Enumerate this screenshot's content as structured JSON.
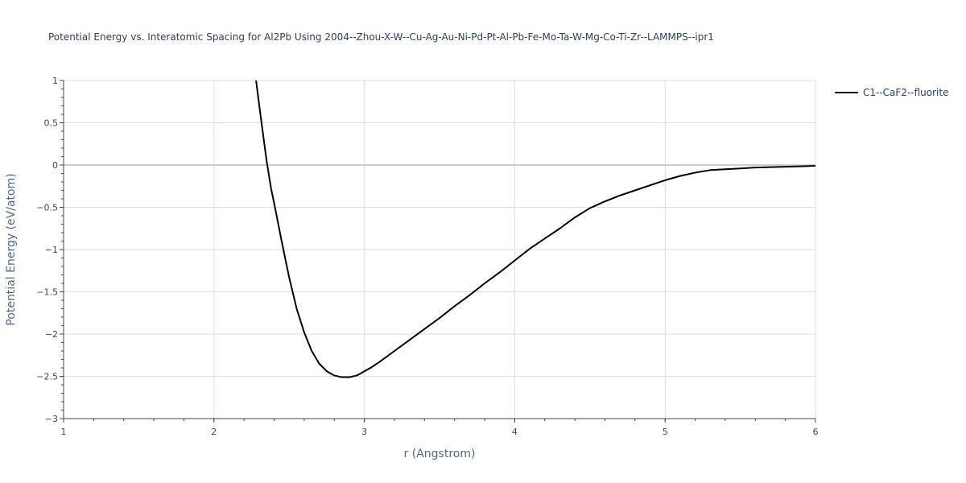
{
  "chart_data": {
    "type": "line",
    "title": "Potential Energy vs. Interatomic Spacing for Al2Pb Using 2004--Zhou-X-W--Cu-Ag-Au-Ni-Pd-Pt-Al-Pb-Fe-Mo-Ta-W-Mg-Co-Ti-Zr--LAMMPS--ipr1",
    "xlabel": "r (Angstrom)",
    "ylabel": "Potential Energy (eV/atom)",
    "xlim": [
      1,
      6
    ],
    "ylim": [
      -3,
      1
    ],
    "x_ticks": [
      1,
      2,
      3,
      4,
      5,
      6
    ],
    "x_tick_labels": [
      "1",
      "2",
      "3",
      "4",
      "5",
      "6"
    ],
    "y_ticks": [
      1,
      0.5,
      0,
      -0.5,
      -1,
      -1.5,
      -2,
      -2.5,
      -3
    ],
    "y_tick_labels": [
      "1",
      "0.5",
      "0",
      "−0.5",
      "−1",
      "−1.5",
      "−2",
      "−2.5",
      "−3"
    ],
    "grid": true,
    "legend_position": "top-right",
    "series": [
      {
        "name": "C1--CaF2--fluorite",
        "color": "#000000",
        "x": [
          2.28,
          2.3,
          2.32,
          2.35,
          2.38,
          2.4,
          2.45,
          2.5,
          2.55,
          2.6,
          2.65,
          2.7,
          2.75,
          2.8,
          2.85,
          2.9,
          2.95,
          3.0,
          3.05,
          3.1,
          3.2,
          3.3,
          3.4,
          3.5,
          3.6,
          3.7,
          3.8,
          3.9,
          4.0,
          4.1,
          4.2,
          4.3,
          4.4,
          4.5,
          4.6,
          4.7,
          4.8,
          4.9,
          5.0,
          5.1,
          5.2,
          5.3,
          5.4,
          5.5,
          5.6,
          5.7,
          5.8,
          5.9,
          6.0
        ],
        "y": [
          1.0,
          0.72,
          0.45,
          0.05,
          -0.28,
          -0.45,
          -0.9,
          -1.33,
          -1.7,
          -1.98,
          -2.2,
          -2.35,
          -2.44,
          -2.49,
          -2.51,
          -2.51,
          -2.49,
          -2.44,
          -2.39,
          -2.33,
          -2.2,
          -2.07,
          -1.94,
          -1.81,
          -1.67,
          -1.54,
          -1.4,
          -1.27,
          -1.13,
          -0.99,
          -0.87,
          -0.75,
          -0.62,
          -0.51,
          -0.43,
          -0.36,
          -0.3,
          -0.24,
          -0.18,
          -0.13,
          -0.09,
          -0.06,
          -0.05,
          -0.04,
          -0.03,
          -0.025,
          -0.02,
          -0.015,
          -0.01
        ]
      }
    ]
  }
}
